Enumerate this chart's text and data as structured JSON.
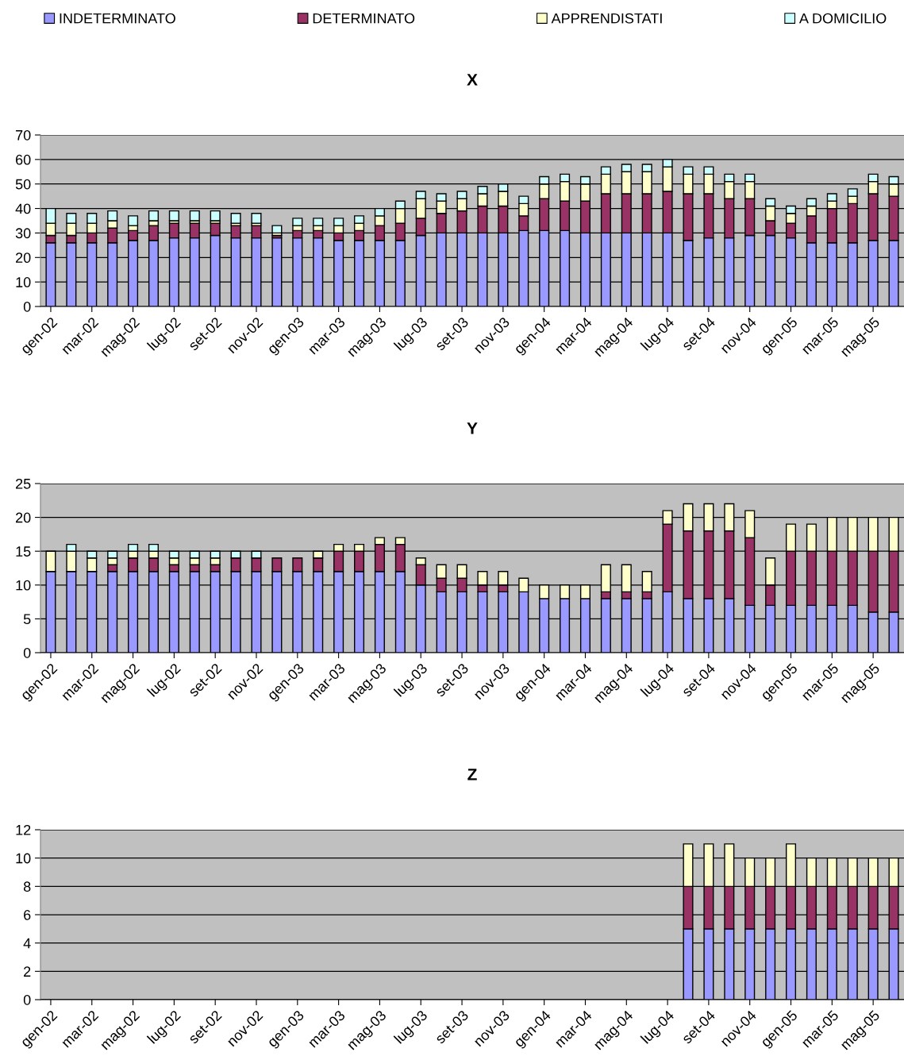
{
  "chart_data": [
    {
      "type": "bar",
      "stacked": true,
      "title": "X",
      "legend": "top",
      "categories": [
        "gen-02",
        null,
        "mar-02",
        null,
        "mag-02",
        null,
        "lug-02",
        null,
        "set-02",
        null,
        "nov-02",
        null,
        "gen-03",
        null,
        "mar-03",
        null,
        "mag-03",
        null,
        "lug-03",
        null,
        "set-03",
        null,
        "nov-03",
        null,
        "gen-04",
        null,
        "mar-04",
        null,
        "mag-04",
        null,
        "lug-04",
        null,
        "set-04",
        null,
        "nov-04",
        null,
        "gen-05",
        null,
        "mar-05",
        null,
        "mag-05",
        null
      ],
      "ylim": [
        0,
        70
      ],
      "yticks": [
        0,
        10,
        20,
        30,
        40,
        50,
        60,
        70
      ],
      "grid": "y",
      "series": [
        {
          "name": "INDETERMINATO",
          "color": "#9999ff",
          "values": [
            26,
            26,
            26,
            26,
            27,
            27,
            28,
            28,
            29,
            28,
            28,
            28,
            28,
            28,
            27,
            27,
            27,
            27,
            29,
            30,
            30,
            30,
            30,
            31,
            31,
            31,
            30,
            30,
            30,
            30,
            30,
            27,
            28,
            28,
            29,
            29,
            28,
            26,
            26,
            26,
            27,
            27
          ]
        },
        {
          "name": "DETERMINATO",
          "color": "#993366",
          "values": [
            3,
            3,
            4,
            6,
            4,
            6,
            6,
            6,
            5,
            5,
            5,
            1,
            3,
            3,
            3,
            4,
            6,
            7,
            7,
            8,
            9,
            11,
            11,
            6,
            13,
            12,
            13,
            16,
            16,
            16,
            17,
            19,
            18,
            16,
            15,
            6,
            6,
            11,
            14,
            16,
            19,
            18
          ]
        },
        {
          "name": "APPRENDISTATI",
          "color": "#ffffcc",
          "values": [
            5,
            5,
            4,
            3,
            2,
            2,
            1,
            1,
            1,
            1,
            1,
            1,
            2,
            2,
            3,
            3,
            4,
            6,
            8,
            5,
            5,
            5,
            6,
            5,
            6,
            8,
            7,
            8,
            9,
            9,
            10,
            8,
            8,
            7,
            7,
            6,
            4,
            4,
            3,
            3,
            5,
            5
          ]
        },
        {
          "name": "A DOMICILIO",
          "color": "#ccffff",
          "values": [
            6,
            4,
            4,
            4,
            4,
            4,
            4,
            4,
            4,
            4,
            4,
            3,
            3,
            3,
            3,
            3,
            3,
            3,
            3,
            3,
            3,
            3,
            3,
            3,
            3,
            3,
            3,
            3,
            3,
            3,
            3,
            3,
            3,
            3,
            3,
            3,
            3,
            3,
            3,
            3,
            3,
            3
          ]
        }
      ]
    },
    {
      "type": "bar",
      "stacked": true,
      "title": "Y",
      "categories": [
        "gen-02",
        null,
        "mar-02",
        null,
        "mag-02",
        null,
        "lug-02",
        null,
        "set-02",
        null,
        "nov-02",
        null,
        "gen-03",
        null,
        "mar-03",
        null,
        "mag-03",
        null,
        "lug-03",
        null,
        "set-03",
        null,
        "nov-03",
        null,
        "gen-04",
        null,
        "mar-04",
        null,
        "mag-04",
        null,
        "lug-04",
        null,
        "set-04",
        null,
        "nov-04",
        null,
        "gen-05",
        null,
        "mar-05",
        null,
        "mag-05",
        null
      ],
      "ylim": [
        0,
        25
      ],
      "yticks": [
        0,
        5,
        10,
        15,
        20,
        25
      ],
      "grid": "y",
      "series": [
        {
          "color": "#9999ff",
          "values": [
            12,
            12,
            12,
            12,
            12,
            12,
            12,
            12,
            12,
            12,
            12,
            12,
            12,
            12,
            12,
            12,
            12,
            12,
            10,
            9,
            9,
            9,
            9,
            9,
            8,
            8,
            8,
            8,
            8,
            8,
            9,
            8,
            8,
            8,
            7,
            7,
            7,
            7,
            7,
            7,
            6,
            6
          ]
        },
        {
          "color": "#993366",
          "values": [
            null,
            null,
            null,
            1,
            2,
            2,
            1,
            1,
            1,
            2,
            2,
            2,
            2,
            2,
            3,
            3,
            4,
            4,
            3,
            2,
            2,
            1,
            1,
            null,
            null,
            null,
            null,
            1,
            1,
            1,
            10,
            10,
            10,
            10,
            10,
            3,
            8,
            8,
            8,
            8,
            9,
            9
          ]
        },
        {
          "color": "#ffffcc",
          "values": [
            3,
            3,
            2,
            1,
            1,
            1,
            1,
            1,
            1,
            null,
            null,
            null,
            null,
            1,
            1,
            1,
            1,
            1,
            1,
            2,
            2,
            2,
            2,
            2,
            2,
            2,
            2,
            4,
            4,
            3,
            2,
            4,
            4,
            4,
            4,
            4,
            4,
            4,
            5,
            5,
            5,
            5
          ]
        },
        {
          "color": "#ccffff",
          "values": [
            null,
            1,
            1,
            1,
            1,
            1,
            1,
            1,
            1,
            1,
            1,
            null,
            null,
            null,
            null,
            null,
            null,
            null,
            null,
            null,
            null,
            null,
            null,
            null,
            null,
            null,
            null,
            null,
            null,
            null,
            null,
            null,
            null,
            null,
            null,
            null,
            null,
            null,
            null,
            null,
            null,
            null
          ]
        }
      ]
    },
    {
      "type": "bar",
      "stacked": true,
      "title": "Z",
      "categories": [
        "gen-02",
        null,
        "mar-02",
        null,
        "mag-02",
        null,
        "lug-02",
        null,
        "set-02",
        null,
        "nov-02",
        null,
        "gen-03",
        null,
        "mar-03",
        null,
        "mag-03",
        null,
        "lug-03",
        null,
        "set-03",
        null,
        "nov-03",
        null,
        "gen-04",
        null,
        "mar-04",
        null,
        "mag-04",
        null,
        "lug-04",
        null,
        "set-04",
        null,
        "nov-04",
        null,
        "gen-05",
        null,
        "mar-05",
        null,
        "mag-05",
        null
      ],
      "ylim": [
        0,
        12
      ],
      "yticks": [
        0,
        2,
        4,
        6,
        8,
        10,
        12
      ],
      "grid": "y",
      "series": [
        {
          "color": "#9999ff",
          "values": [
            null,
            null,
            null,
            null,
            null,
            null,
            null,
            null,
            null,
            null,
            null,
            null,
            null,
            null,
            null,
            null,
            null,
            null,
            null,
            null,
            null,
            null,
            null,
            null,
            null,
            null,
            null,
            null,
            null,
            null,
            null,
            5,
            5,
            5,
            5,
            5,
            5,
            5,
            5,
            5,
            5,
            5
          ]
        },
        {
          "color": "#993366",
          "values": [
            null,
            null,
            null,
            null,
            null,
            null,
            null,
            null,
            null,
            null,
            null,
            null,
            null,
            null,
            null,
            null,
            null,
            null,
            null,
            null,
            null,
            null,
            null,
            null,
            null,
            null,
            null,
            null,
            null,
            null,
            null,
            3,
            3,
            3,
            3,
            3,
            3,
            3,
            3,
            3,
            3,
            3
          ]
        },
        {
          "color": "#ffffcc",
          "values": [
            null,
            null,
            null,
            null,
            null,
            null,
            null,
            null,
            null,
            null,
            null,
            null,
            null,
            null,
            null,
            null,
            null,
            null,
            null,
            null,
            null,
            null,
            null,
            null,
            null,
            null,
            null,
            null,
            null,
            null,
            null,
            3,
            3,
            3,
            2,
            2,
            3,
            2,
            2,
            2,
            2,
            2
          ]
        }
      ]
    }
  ]
}
